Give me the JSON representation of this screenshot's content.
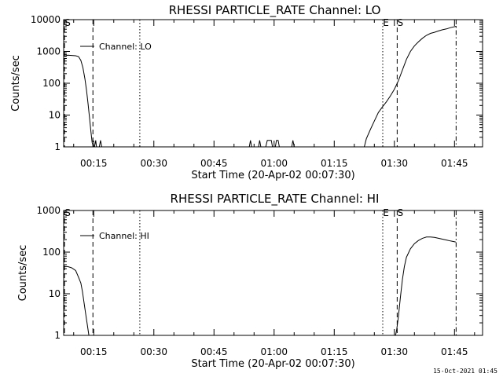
{
  "footer": {
    "timestamp": "15-Oct-2021 01:45"
  },
  "chart_data": [
    {
      "type": "line",
      "title": "RHESSI PARTICLE_RATE Channel: LO",
      "xlabel": "Start Time (20-Apr-02 00:07:30)",
      "ylabel": "Counts/sec",
      "yscale": "log",
      "ylim": [
        1,
        10000
      ],
      "xlim_min": [
        7.5,
        112
      ],
      "x_ticks": [
        15,
        30,
        45,
        60,
        75,
        90,
        105
      ],
      "x_tick_labels": [
        "00:15",
        "00:30",
        "00:45",
        "01:00",
        "01:15",
        "01:30",
        "01:45"
      ],
      "y_ticks": [
        1,
        10,
        100,
        1000,
        10000
      ],
      "y_tick_labels": [
        "1",
        "10",
        "100",
        "1000",
        "10000"
      ],
      "legend": [
        "Channel: LO"
      ],
      "legend_position": "top-left",
      "markers": [
        {
          "label": "S",
          "x": 7.7,
          "style": "dashed"
        },
        {
          "label": "",
          "x": 14.8,
          "style": "dashed"
        },
        {
          "label": "",
          "x": 26.5,
          "style": "dotted"
        },
        {
          "label": "E",
          "x": 87.1,
          "style": "dotted"
        },
        {
          "label": "S",
          "x": 90.7,
          "style": "dashed"
        },
        {
          "label": "",
          "x": 105.4,
          "style": "dashdot"
        }
      ],
      "series": [
        {
          "name": "Channel: LO",
          "segments": [
            [
              [
                7.5,
                700
              ],
              [
                8.5,
                760
              ],
              [
                9.5,
                750
              ],
              [
                10.5,
                730
              ],
              [
                11.2,
                690
              ],
              [
                11.8,
                520
              ],
              [
                12.3,
                310
              ],
              [
                12.8,
                140
              ],
              [
                13.2,
                60
              ],
              [
                13.6,
                22
              ],
              [
                14.0,
                7
              ],
              [
                14.3,
                3
              ],
              [
                14.6,
                1.4
              ],
              [
                14.9,
                1
              ]
            ],
            [
              [
                15.2,
                1
              ],
              [
                15.5,
                1.6
              ],
              [
                15.7,
                1
              ]
            ],
            [
              [
                16.4,
                1
              ],
              [
                16.7,
                1.6
              ],
              [
                17.0,
                1
              ]
            ],
            [
              [
                53.8,
                1
              ],
              [
                54.1,
                1.6
              ],
              [
                54.4,
                1
              ]
            ],
            [
              [
                56.1,
                1
              ],
              [
                56.4,
                1.6
              ],
              [
                56.7,
                1
              ]
            ],
            [
              [
                57.9,
                1
              ],
              [
                58.3,
                1.6
              ],
              [
                59.3,
                1.6
              ],
              [
                59.6,
                1
              ]
            ],
            [
              [
                60.3,
                1
              ],
              [
                60.6,
                1.6
              ],
              [
                61.0,
                1.6
              ],
              [
                61.3,
                1
              ]
            ],
            [
              [
                64.4,
                1
              ],
              [
                64.7,
                1.6
              ],
              [
                65.0,
                1
              ]
            ],
            [
              [
                82.5,
                1
              ],
              [
                83.0,
                1.8
              ],
              [
                84.0,
                3.5
              ],
              [
                85.0,
                6.5
              ],
              [
                86.0,
                12
              ],
              [
                87.0,
                18
              ],
              [
                88.0,
                26
              ],
              [
                89.0,
                40
              ],
              [
                90.0,
                65
              ],
              [
                91.0,
                120
              ],
              [
                92.0,
                260
              ],
              [
                93.0,
                560
              ],
              [
                94.0,
                1000
              ],
              [
                95.0,
                1500
              ],
              [
                96.0,
                2000
              ],
              [
                97.0,
                2600
              ],
              [
                98.0,
                3200
              ],
              [
                99.0,
                3700
              ],
              [
                100.0,
                4000
              ],
              [
                101.0,
                4400
              ],
              [
                102.0,
                4800
              ],
              [
                103.0,
                5100
              ],
              [
                104.0,
                5600
              ],
              [
                105.5,
                6200
              ]
            ]
          ]
        }
      ]
    },
    {
      "type": "line",
      "title": "RHESSI PARTICLE_RATE Channel: HI",
      "xlabel": "Start Time (20-Apr-02 00:07:30)",
      "ylabel": "Counts/sec",
      "yscale": "log",
      "ylim": [
        1,
        1000
      ],
      "xlim_min": [
        7.5,
        112
      ],
      "x_ticks": [
        15,
        30,
        45,
        60,
        75,
        90,
        105
      ],
      "x_tick_labels": [
        "00:15",
        "00:30",
        "00:45",
        "01:00",
        "01:15",
        "01:30",
        "01:45"
      ],
      "y_ticks": [
        1,
        10,
        100,
        1000
      ],
      "y_tick_labels": [
        "1",
        "10",
        "100",
        "1000"
      ],
      "legend": [
        "Channel: HI"
      ],
      "legend_position": "top-left",
      "markers": [
        {
          "label": "S",
          "x": 7.7,
          "style": "dashed"
        },
        {
          "label": "",
          "x": 14.8,
          "style": "dashed"
        },
        {
          "label": "",
          "x": 26.5,
          "style": "dotted"
        },
        {
          "label": "E",
          "x": 87.1,
          "style": "dotted"
        },
        {
          "label": "S",
          "x": 90.7,
          "style": "dashed"
        },
        {
          "label": "",
          "x": 105.4,
          "style": "dashdot"
        }
      ],
      "series": [
        {
          "name": "Channel: HI",
          "segments": [
            [
              [
                7.5,
                45
              ],
              [
                8.5,
                45
              ],
              [
                9.5,
                42
              ],
              [
                10.5,
                36
              ],
              [
                11.2,
                25
              ],
              [
                11.8,
                18
              ],
              [
                12.2,
                11
              ],
              [
                12.6,
                6
              ],
              [
                13.0,
                3.2
              ],
              [
                13.4,
                1.8
              ],
              [
                13.8,
                1
              ]
            ],
            [
              [
                90.3,
                1
              ],
              [
                90.6,
                1.4
              ],
              [
                91.0,
                2.8
              ],
              [
                91.5,
                8
              ],
              [
                92.0,
                22
              ],
              [
                92.5,
                45
              ],
              [
                93.0,
                75
              ],
              [
                94.0,
                120
              ],
              [
                95.0,
                160
              ],
              [
                96.0,
                190
              ],
              [
                97.0,
                215
              ],
              [
                98.0,
                230
              ],
              [
                99.0,
                230
              ],
              [
                100.0,
                225
              ],
              [
                101.0,
                215
              ],
              [
                102.0,
                205
              ],
              [
                103.0,
                195
              ],
              [
                104.0,
                185
              ],
              [
                105.3,
                175
              ]
            ]
          ]
        }
      ]
    }
  ]
}
